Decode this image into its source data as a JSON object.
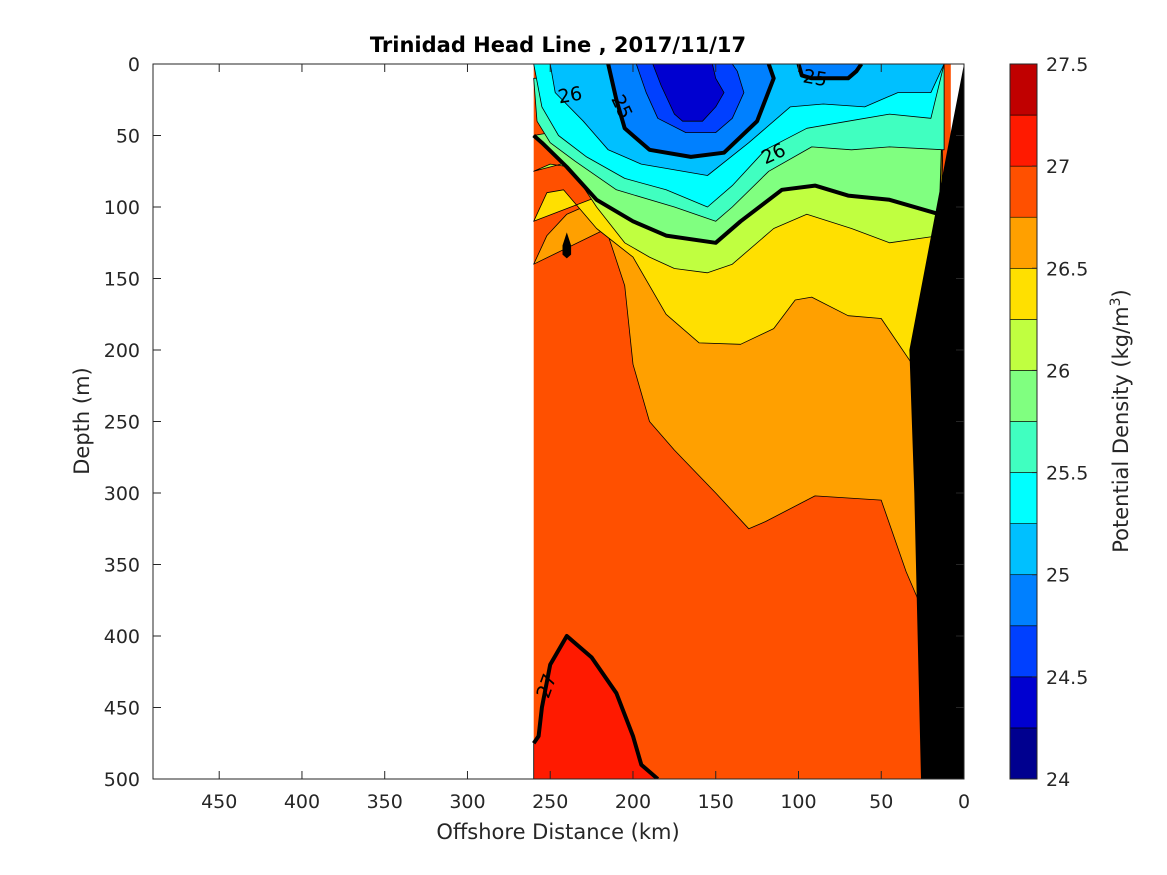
{
  "chart_data": {
    "type": "contour",
    "title": "Trinidad Head Line , 2017/11/17",
    "xlabel": "Offshore Distance (km)",
    "ylabel": "Depth (m)",
    "x_reversed": true,
    "y_reversed": true,
    "xlim": [
      0,
      490
    ],
    "ylim": [
      0,
      500
    ],
    "x_ticks": [
      450,
      400,
      350,
      300,
      250,
      200,
      150,
      100,
      50,
      0
    ],
    "y_ticks": [
      0,
      50,
      100,
      150,
      200,
      250,
      300,
      350,
      400,
      450,
      500
    ],
    "data_x_range": [
      8,
      260
    ],
    "colorbar": {
      "label": "Potential Density (kg/m",
      "label_sup": "3",
      "label_end": ")",
      "range": [
        24,
        27.5
      ],
      "step": 0.25,
      "ticks": [
        24,
        24.5,
        25,
        25.5,
        26,
        26.5,
        27,
        27.5
      ],
      "colors": [
        "#00008f",
        "#0000d0",
        "#0040ff",
        "#0080ff",
        "#00c0ff",
        "#00ffff",
        "#40ffc0",
        "#80ff80",
        "#c0ff40",
        "#ffe000",
        "#ffa000",
        "#ff5000",
        "#ff1a00",
        "#c00000"
      ]
    },
    "bathymetry": {
      "color": "#000000",
      "polygon": [
        [
          0,
          0
        ],
        [
          0,
          500
        ],
        [
          26,
          500
        ],
        [
          30,
          300
        ],
        [
          33,
          200
        ],
        [
          10,
          60
        ],
        [
          0,
          0
        ]
      ]
    },
    "filled_levels": [
      {
        "level": 24.5,
        "color": "#0000d0",
        "polygon": [
          [
            188,
            0
          ],
          [
            183,
            15
          ],
          [
            175,
            35
          ],
          [
            170,
            40
          ],
          [
            158,
            40
          ],
          [
            150,
            30
          ],
          [
            145,
            20
          ],
          [
            150,
            10
          ],
          [
            152,
            0
          ]
        ]
      },
      {
        "level": 24.75,
        "color": "#0040ff",
        "polygon": [
          [
            198,
            0
          ],
          [
            192,
            20
          ],
          [
            185,
            38
          ],
          [
            168,
            48
          ],
          [
            150,
            48
          ],
          [
            140,
            38
          ],
          [
            133,
            20
          ],
          [
            137,
            5
          ],
          [
            140,
            0
          ]
        ]
      },
      {
        "level": 25,
        "color": "#0080ff",
        "polygon": [
          [
            215,
            0
          ],
          [
            210,
            25
          ],
          [
            205,
            45
          ],
          [
            190,
            60
          ],
          [
            165,
            65
          ],
          [
            145,
            62
          ],
          [
            125,
            40
          ],
          [
            115,
            10
          ],
          [
            118,
            0
          ]
        ]
      },
      {
        "level": 25,
        "color": "#0080ff",
        "polygon": [
          [
            100,
            0
          ],
          [
            98,
            8
          ],
          [
            92,
            10
          ],
          [
            70,
            10
          ],
          [
            65,
            5
          ],
          [
            62,
            0
          ]
        ]
      },
      {
        "level": 25.25,
        "color": "#00c0ff",
        "polygon": [
          [
            250,
            0
          ],
          [
            247,
            20
          ],
          [
            230,
            40
          ],
          [
            215,
            60
          ],
          [
            195,
            70
          ],
          [
            155,
            78
          ],
          [
            130,
            55
          ],
          [
            105,
            30
          ],
          [
            85,
            28
          ],
          [
            60,
            30
          ],
          [
            40,
            20
          ],
          [
            20,
            20
          ],
          [
            12,
            0
          ]
        ]
      },
      {
        "level": 25.5,
        "color": "#00ffff",
        "polygon": [
          [
            260,
            0
          ],
          [
            255,
            30
          ],
          [
            245,
            50
          ],
          [
            228,
            65
          ],
          [
            205,
            80
          ],
          [
            180,
            88
          ],
          [
            155,
            100
          ],
          [
            140,
            85
          ],
          [
            120,
            60
          ],
          [
            95,
            45
          ],
          [
            70,
            40
          ],
          [
            45,
            35
          ],
          [
            20,
            38
          ],
          [
            12,
            0
          ]
        ]
      },
      {
        "level": 25.75,
        "color": "#40ffc0",
        "polygon": [
          [
            260,
            10
          ],
          [
            258,
            40
          ],
          [
            250,
            55
          ],
          [
            235,
            68
          ],
          [
            210,
            88
          ],
          [
            175,
            100
          ],
          [
            150,
            110
          ],
          [
            140,
            100
          ],
          [
            118,
            75
          ],
          [
            92,
            58
          ],
          [
            68,
            60
          ],
          [
            45,
            58
          ],
          [
            12,
            60
          ],
          [
            12,
            0
          ]
        ]
      },
      {
        "level": 26,
        "color": "#80ff80",
        "polygon": [
          [
            260,
            50
          ],
          [
            255,
            55
          ],
          [
            240,
            72
          ],
          [
            222,
            95
          ],
          [
            200,
            110
          ],
          [
            180,
            120
          ],
          [
            150,
            125
          ],
          [
            135,
            110
          ],
          [
            110,
            88
          ],
          [
            90,
            85
          ],
          [
            70,
            92
          ],
          [
            45,
            95
          ],
          [
            15,
            105
          ],
          [
            12,
            0
          ]
        ]
      },
      {
        "level": 26.25,
        "color": "#c0ff40",
        "polygon": [
          [
            260,
            75
          ],
          [
            250,
            70
          ],
          [
            238,
            72
          ],
          [
            222,
            100
          ],
          [
            205,
            125
          ],
          [
            190,
            135
          ],
          [
            175,
            143
          ],
          [
            155,
            146
          ],
          [
            140,
            140
          ],
          [
            115,
            115
          ],
          [
            95,
            105
          ],
          [
            68,
            115
          ],
          [
            45,
            125
          ],
          [
            15,
            120
          ],
          [
            12,
            0
          ]
        ]
      },
      {
        "level": 26.5,
        "color": "#ffe000",
        "polygon": [
          [
            260,
            110
          ],
          [
            252,
            90
          ],
          [
            242,
            88
          ],
          [
            222,
            115
          ],
          [
            200,
            135
          ],
          [
            180,
            175
          ],
          [
            160,
            195
          ],
          [
            135,
            196
          ],
          [
            115,
            185
          ],
          [
            102,
            165
          ],
          [
            92,
            163
          ],
          [
            70,
            176
          ],
          [
            50,
            178
          ],
          [
            30,
            212
          ],
          [
            16,
            262
          ],
          [
            12,
            0
          ]
        ]
      },
      {
        "level": 26.75,
        "color": "#ffa000",
        "polygon": [
          [
            260,
            140
          ],
          [
            252,
            120
          ],
          [
            240,
            105
          ],
          [
            230,
            100
          ],
          [
            215,
            120
          ],
          [
            205,
            155
          ],
          [
            200,
            210
          ],
          [
            190,
            250
          ],
          [
            175,
            270
          ],
          [
            150,
            300
          ],
          [
            130,
            325
          ],
          [
            120,
            320
          ],
          [
            90,
            302
          ],
          [
            50,
            305
          ],
          [
            35,
            355
          ],
          [
            22,
            390
          ],
          [
            18,
            410
          ],
          [
            16,
            262
          ],
          [
            12,
            0
          ]
        ]
      },
      {
        "level": 27,
        "color": "#ff1a00",
        "polygon": [
          [
            260,
            475
          ],
          [
            257,
            470
          ],
          [
            255,
            450
          ],
          [
            250,
            420
          ],
          [
            240,
            400
          ],
          [
            225,
            415
          ],
          [
            210,
            440
          ],
          [
            200,
            470
          ],
          [
            195,
            490
          ],
          [
            185,
            500
          ],
          [
            260,
            500
          ]
        ]
      }
    ],
    "contour_lines": [
      {
        "level": 26,
        "points": [
          [
            260,
            50
          ],
          [
            255,
            55
          ],
          [
            240,
            72
          ],
          [
            222,
            95
          ],
          [
            200,
            110
          ],
          [
            180,
            120
          ],
          [
            150,
            125
          ],
          [
            135,
            110
          ],
          [
            110,
            88
          ],
          [
            90,
            85
          ],
          [
            70,
            92
          ],
          [
            45,
            95
          ],
          [
            15,
            105
          ]
        ]
      },
      {
        "level": 25,
        "points": [
          [
            215,
            0
          ],
          [
            210,
            25
          ],
          [
            205,
            45
          ],
          [
            190,
            60
          ],
          [
            165,
            65
          ],
          [
            145,
            62
          ],
          [
            125,
            40
          ],
          [
            115,
            10
          ],
          [
            118,
            0
          ]
        ]
      },
      {
        "level": 25,
        "points": [
          [
            100,
            0
          ],
          [
            98,
            8
          ],
          [
            92,
            10
          ],
          [
            70,
            10
          ],
          [
            65,
            5
          ],
          [
            62,
            0
          ]
        ]
      },
      {
        "level": 27,
        "points": [
          [
            260,
            475
          ],
          [
            257,
            470
          ],
          [
            255,
            450
          ],
          [
            250,
            420
          ],
          [
            240,
            400
          ],
          [
            225,
            415
          ],
          [
            210,
            440
          ],
          [
            200,
            470
          ],
          [
            195,
            490
          ],
          [
            185,
            500
          ]
        ]
      }
    ],
    "contour_labels": [
      {
        "text": "26",
        "x": 238,
        "y": 22,
        "angle": -10
      },
      {
        "text": "26",
        "x": 115,
        "y": 63,
        "angle": -25
      },
      {
        "text": "25",
        "x": 207,
        "y": 30,
        "angle": 65
      },
      {
        "text": "25",
        "x": 90,
        "y": 10,
        "angle": 10
      },
      {
        "text": "27",
        "x": 252,
        "y": 435,
        "angle": -70
      }
    ]
  }
}
